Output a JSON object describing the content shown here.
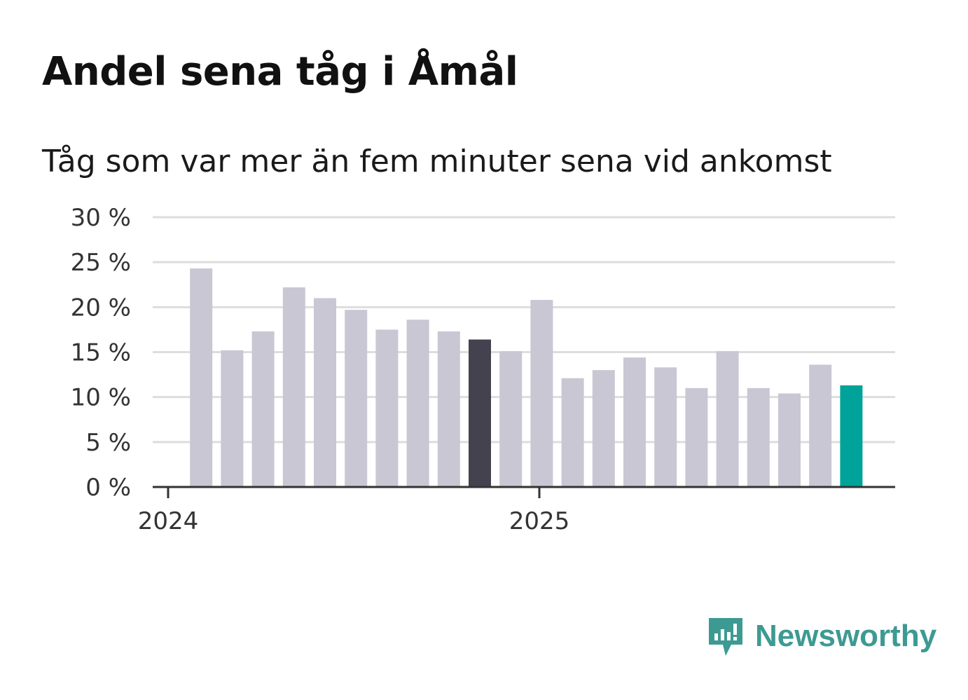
{
  "chart_data": {
    "type": "bar",
    "title": "Andel sena tåg i Åmål",
    "subtitle": "Tåg som var mer än fem minuter sena vid ankomst",
    "ylim": [
      0,
      30
    ],
    "yticks": [
      0,
      5,
      10,
      15,
      20,
      25,
      30
    ],
    "ytick_labels": [
      "0 %",
      "5 %",
      "10 %",
      "15 %",
      "20 %",
      "25 %",
      "30 %"
    ],
    "xtick_labels": [
      "2024",
      "2025"
    ],
    "categories": [
      "2024-02",
      "2024-03",
      "2024-04",
      "2024-05",
      "2024-06",
      "2024-07",
      "2024-08",
      "2024-09",
      "2024-10",
      "2024-11",
      "2024-12",
      "2025-01",
      "2025-02",
      "2025-03",
      "2025-04",
      "2025-05",
      "2025-06",
      "2025-07",
      "2025-08",
      "2025-09",
      "2025-10",
      "2025-11"
    ],
    "values": [
      24.3,
      15.2,
      17.3,
      22.2,
      21.0,
      19.7,
      17.5,
      18.6,
      17.3,
      16.4,
      15.1,
      20.8,
      12.1,
      13.0,
      14.4,
      13.3,
      11.0,
      15.1,
      11.0,
      10.4,
      13.6,
      11.3
    ],
    "highlight": {
      "2024-11": "#44424f",
      "2025-11": "#00a399"
    },
    "colors": {
      "bar": "#c9c7d3",
      "grid": "#dddddd",
      "axis": "#333333"
    },
    "legend": "none"
  },
  "branding": {
    "name": "Newsworthy",
    "color": "#3d9a93"
  }
}
